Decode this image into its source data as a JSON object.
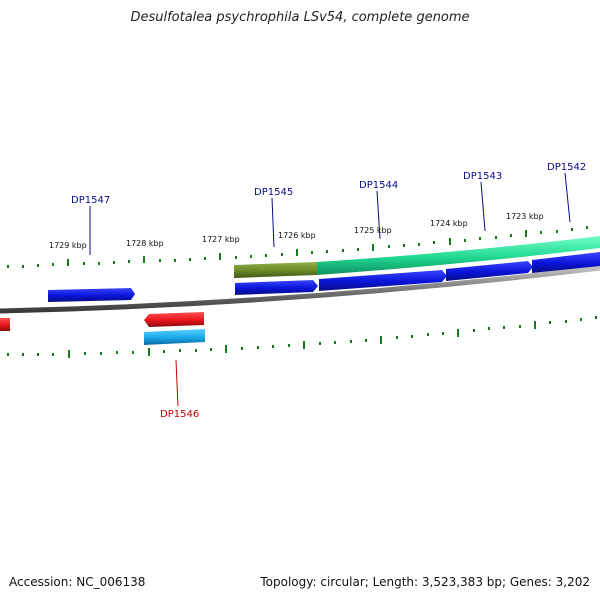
{
  "title": "Desulfotalea psychrophila LSv54, complete genome",
  "accession": "Accession: NC_006138",
  "topology": "Topology: circular; Length: 3,523,383 bp; Genes: 3,202",
  "colors": {
    "forward_cds": "#0a14d8",
    "reverse_cds": "#e8141a",
    "reverse_cds_light": "#18a8e8",
    "rna": "#20d890",
    "olive": "#6b8a28",
    "tick": "#1a7a1a",
    "backbone": "#7a7a7a",
    "label_forward": "#0a0a8a",
    "label_reverse": "#c00000"
  },
  "scale_labels": [
    "1729 kbp",
    "1728 kbp",
    "1727 kbp",
    "1726 kbp",
    "1725 kbp",
    "1724 kbp",
    "1723 kbp"
  ],
  "gene_labels": [
    "DP1547",
    "DP1545",
    "DP1544",
    "DP1543",
    "DP1542",
    "DP1546"
  ]
}
